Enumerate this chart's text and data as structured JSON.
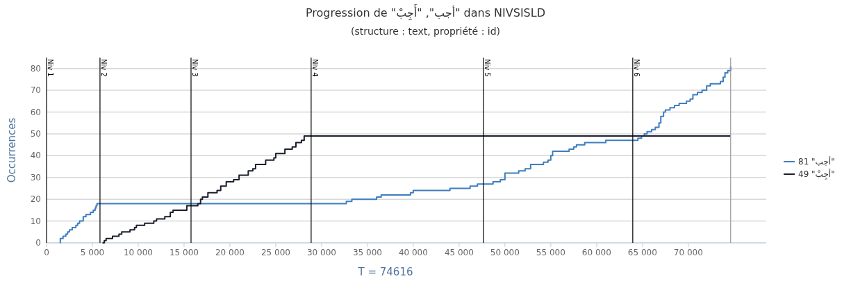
{
  "chart_data": {
    "type": "step",
    "title": "Progression de \"أجب\", \"أَجِبْ\" dans NIVSISLD",
    "subtitle": "(structure : text, propriété : id)",
    "xlabel": "T = 74616",
    "ylabel": "Occurrences",
    "xlim": [
      0,
      78500
    ],
    "ylim": [
      0,
      85
    ],
    "xticks": [
      0,
      {
        "value": 5000,
        "label": "5 000"
      },
      {
        "value": 10000,
        "label": "10 000"
      },
      {
        "value": 15000,
        "label": "15 000"
      },
      {
        "value": 20000,
        "label": "20 000"
      },
      {
        "value": 25000,
        "label": "25 000"
      },
      {
        "value": 30000,
        "label": "30 000"
      },
      {
        "value": 35000,
        "label": "35 000"
      },
      {
        "value": 40000,
        "label": "40 000"
      },
      {
        "value": 45000,
        "label": "45 000"
      },
      {
        "value": 50000,
        "label": "50 000"
      },
      {
        "value": 55000,
        "label": "55 000"
      },
      {
        "value": 60000,
        "label": "60 000"
      },
      {
        "value": 65000,
        "label": "65 000"
      },
      {
        "value": 70000,
        "label": "70 000"
      }
    ],
    "yticks": [
      0,
      10,
      20,
      30,
      40,
      50,
      60,
      70,
      80
    ],
    "grid": "y",
    "legend": "right",
    "series": [
      {
        "name": "أجب\" 81\"",
        "color": "#3d7ebf",
        "x": [
          1460,
          1500,
          1800,
          2100,
          2300,
          2500,
          2800,
          3200,
          3400,
          3600,
          4000,
          4300,
          4800,
          5100,
          5300,
          5400,
          5500,
          32700,
          33300,
          36000,
          36500,
          39700,
          40000,
          44000,
          46200,
          47000,
          48700,
          49500,
          50000,
          51500,
          52200,
          52800,
          54200,
          54700,
          55000,
          55200,
          57000,
          57500,
          57800,
          58700,
          61000,
          64500,
          64900,
          65200,
          65500,
          66000,
          66400,
          66800,
          67000,
          67300,
          67500,
          68000,
          68500,
          69000,
          69800,
          70200,
          70500,
          71000,
          71500,
          72000,
          72400,
          73500,
          73800,
          74000,
          74300,
          74616
        ],
        "values": [
          0,
          2,
          3,
          4,
          5,
          6,
          7,
          8,
          9,
          10,
          12,
          13,
          14,
          15,
          16,
          17,
          18,
          19,
          20,
          21,
          22,
          23,
          24,
          25,
          26,
          27,
          28,
          29,
          32,
          33,
          34,
          36,
          37,
          38,
          40,
          42,
          43,
          44,
          45,
          46,
          47,
          48,
          49,
          50,
          51,
          52,
          53,
          55,
          58,
          60,
          61,
          62,
          63,
          64,
          65,
          66,
          68,
          69,
          70,
          72,
          73,
          74,
          76,
          78,
          79,
          81
        ]
      },
      {
        "name": "أجِبْ\" 49\"",
        "color": "#1a1f2b",
        "x": [
          6100,
          6300,
          6500,
          7200,
          7900,
          8200,
          9100,
          9600,
          9800,
          10700,
          11700,
          12000,
          12900,
          13500,
          13800,
          15300,
          16500,
          16800,
          17000,
          17600,
          18600,
          19000,
          19600,
          20400,
          21000,
          22000,
          22500,
          22800,
          23900,
          24800,
          25000,
          26000,
          26800,
          27200,
          27800,
          28100,
          74616
        ],
        "values": [
          0,
          1,
          2,
          3,
          4,
          5,
          6,
          7,
          8,
          9,
          10,
          11,
          12,
          14,
          15,
          17,
          18,
          20,
          21,
          23,
          24,
          26,
          28,
          29,
          31,
          33,
          34,
          36,
          38,
          39,
          41,
          43,
          44,
          46,
          47,
          49,
          49
        ]
      }
    ],
    "ref_lines": [
      {
        "axis": "x",
        "value": 0,
        "label": "Niv 1",
        "color": "#000000"
      },
      {
        "axis": "x",
        "value": 5830,
        "label": "Niv 2",
        "color": "#000000"
      },
      {
        "axis": "x",
        "value": 15760,
        "label": "Niv 3",
        "color": "#000000"
      },
      {
        "axis": "x",
        "value": 28860,
        "label": "Niv 4",
        "color": "#000000"
      },
      {
        "axis": "x",
        "value": 47650,
        "label": "Niv 5",
        "color": "#000000"
      },
      {
        "axis": "x",
        "value": 63940,
        "label": "Niv 6",
        "color": "#000000"
      },
      {
        "axis": "x",
        "value": 74616,
        "color": "#999999"
      }
    ]
  }
}
